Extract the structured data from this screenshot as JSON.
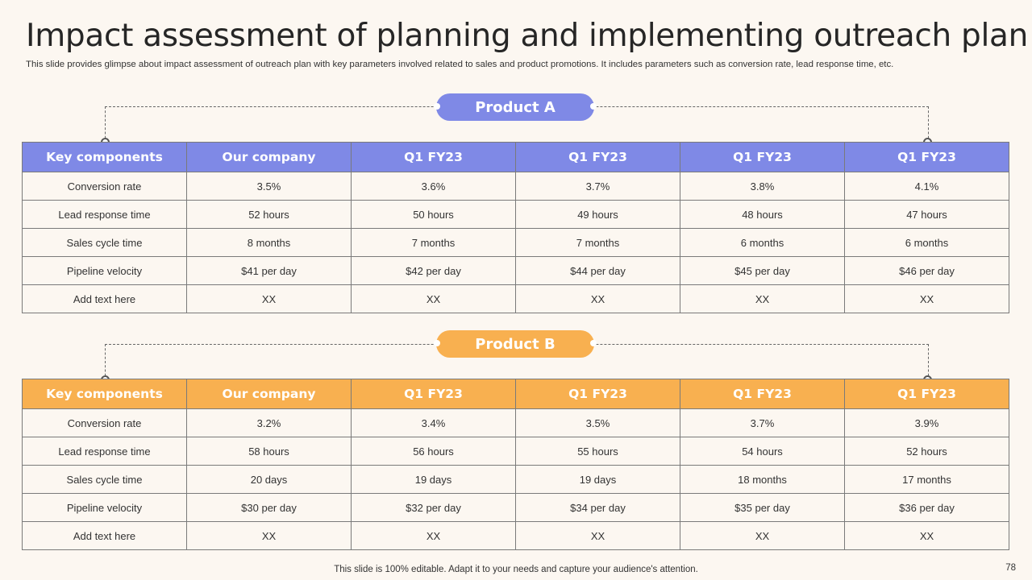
{
  "title": "Impact assessment of planning and implementing outreach plan",
  "subtitle": "This slide provides glimpse about impact assessment of outreach plan with key parameters involved related to sales and product promotions. It includes parameters such as conversion rate, lead response time, etc.",
  "colors": {
    "product_a": "#7f89e6",
    "product_b": "#f8b050",
    "background": "#fcf7f1"
  },
  "product_a": {
    "label": "Product A",
    "headers": [
      "Key components",
      "Our company",
      "Q1 FY23",
      "Q1 FY23",
      "Q1 FY23",
      "Q1 FY23"
    ],
    "rows": [
      [
        "Conversion rate",
        "3.5%",
        "3.6%",
        "3.7%",
        "3.8%",
        "4.1%"
      ],
      [
        "Lead response time",
        "52 hours",
        "50 hours",
        "49 hours",
        "48 hours",
        "47 hours"
      ],
      [
        "Sales cycle time",
        "8 months",
        "7 months",
        "7 months",
        "6 months",
        "6 months"
      ],
      [
        "Pipeline velocity",
        "$41 per day",
        "$42 per day",
        "$44 per day",
        "$45 per day",
        "$46 per day"
      ],
      [
        "Add text here",
        "XX",
        "XX",
        "XX",
        "XX",
        "XX"
      ]
    ]
  },
  "product_b": {
    "label": "Product B",
    "headers": [
      "Key components",
      "Our company",
      "Q1 FY23",
      "Q1 FY23",
      "Q1 FY23",
      "Q1 FY23"
    ],
    "rows": [
      [
        "Conversion rate",
        "3.2%",
        "3.4%",
        "3.5%",
        "3.7%",
        "3.9%"
      ],
      [
        "Lead response time",
        "58 hours",
        "56 hours",
        "55 hours",
        "54 hours",
        "52 hours"
      ],
      [
        "Sales cycle time",
        "20 days",
        "19 days",
        "19 days",
        "18 months",
        "17 months"
      ],
      [
        "Pipeline velocity",
        "$30 per day",
        "$32 per day",
        "$34 per day",
        "$35 per day",
        "$36 per day"
      ],
      [
        "Add text here",
        "XX",
        "XX",
        "XX",
        "XX",
        "XX"
      ]
    ]
  },
  "footer": "This slide is 100% editable. Adapt it to your needs and capture your audience's attention.",
  "page_number": "78"
}
